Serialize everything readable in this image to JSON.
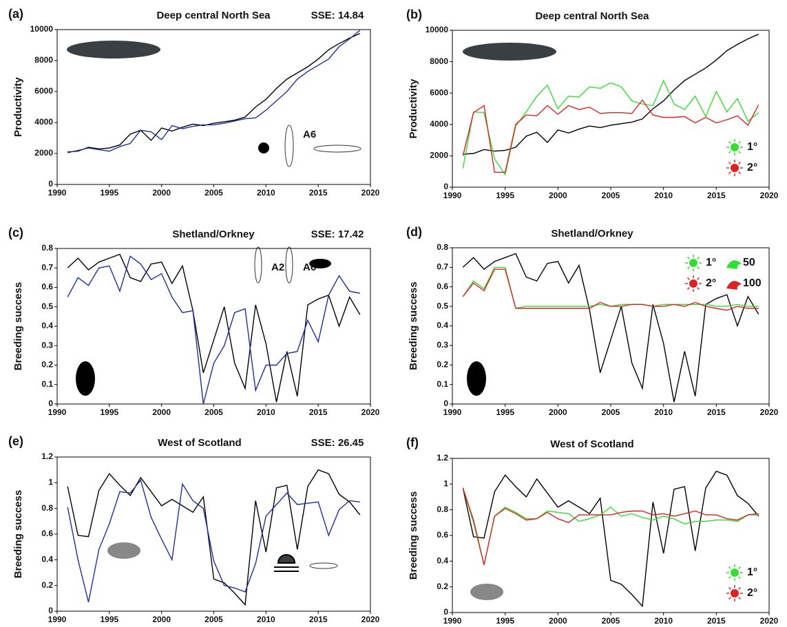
{
  "chart_data": [
    {
      "type": "line",
      "panel_label": "(a)",
      "title": "Deep central North Sea",
      "annotation": "SSE: 14.84",
      "ylabel": "Productivity",
      "icon_labels": [
        "A6"
      ],
      "x": [
        1991,
        1992,
        1993,
        1994,
        1995,
        1996,
        1997,
        1998,
        1999,
        2000,
        2001,
        2002,
        2003,
        2004,
        2005,
        2006,
        2007,
        2008,
        2009,
        2010,
        2011,
        2012,
        2013,
        2014,
        2015,
        2016,
        2017,
        2018,
        2019
      ],
      "xlim": [
        1990,
        2020
      ],
      "xticks": [
        1990,
        1995,
        2000,
        2005,
        2010,
        2015,
        2020
      ],
      "ylim": [
        0,
        10000
      ],
      "yticks": [
        0,
        2000,
        4000,
        6000,
        8000,
        10000
      ],
      "series": [
        {
          "color": "#000000",
          "values": [
            2100,
            2150,
            2400,
            2300,
            2350,
            2550,
            3250,
            3500,
            2850,
            3650,
            3450,
            3700,
            3900,
            3800,
            3950,
            4050,
            4150,
            4350,
            5000,
            5500,
            6200,
            6800,
            7200,
            7600,
            8100,
            8700,
            9100,
            9450,
            9750
          ]
        },
        {
          "color": "#1c2fa0",
          "values": [
            2050,
            2200,
            2350,
            2250,
            2150,
            2450,
            2650,
            3500,
            3400,
            2900,
            3800,
            3600,
            3750,
            3850,
            3850,
            3950,
            4100,
            4250,
            4300,
            4800,
            5400,
            6000,
            6800,
            7300,
            7700,
            8100,
            8900,
            9400,
            9950
          ]
        }
      ]
    },
    {
      "type": "line",
      "panel_label": "(b)",
      "title": "Deep central North Sea",
      "ylabel": "Productivity",
      "legend": "lower right",
      "x": [
        1991,
        1992,
        1993,
        1994,
        1995,
        1996,
        1997,
        1998,
        1999,
        2000,
        2001,
        2002,
        2003,
        2004,
        2005,
        2006,
        2007,
        2008,
        2009,
        2010,
        2011,
        2012,
        2013,
        2014,
        2015,
        2016,
        2017,
        2018,
        2019
      ],
      "xlim": [
        1990,
        2020
      ],
      "xticks": [
        1990,
        1995,
        2000,
        2005,
        2010,
        2015,
        2020
      ],
      "ylim": [
        0,
        10000
      ],
      "yticks": [
        0,
        2000,
        4000,
        6000,
        8000,
        10000
      ],
      "series": [
        {
          "color": "#000000",
          "values": [
            2100,
            2150,
            2400,
            2300,
            2350,
            2550,
            3250,
            3500,
            2850,
            3650,
            3450,
            3700,
            3900,
            3800,
            3950,
            4050,
            4150,
            4350,
            5000,
            5500,
            6200,
            6800,
            7200,
            7600,
            8100,
            8700,
            9100,
            9450,
            9750
          ]
        },
        {
          "name": "1°",
          "color": "#33dd33",
          "values": [
            1200,
            4800,
            4750,
            1800,
            800,
            3900,
            4800,
            5800,
            6500,
            5000,
            5800,
            5750,
            6400,
            6300,
            6650,
            6400,
            5500,
            5300,
            5200,
            6800,
            5300,
            4950,
            5800,
            4500,
            6100,
            4800,
            5650,
            4200,
            4750
          ]
        },
        {
          "name": "2°",
          "color": "#dd2222",
          "values": [
            2000,
            4750,
            5200,
            950,
            950,
            4000,
            4600,
            4550,
            5200,
            4650,
            5200,
            4950,
            5100,
            4700,
            4750,
            4750,
            4700,
            5550,
            4600,
            4450,
            4450,
            4500,
            4100,
            4450,
            4100,
            4300,
            4550,
            3950,
            5250
          ]
        }
      ]
    },
    {
      "type": "line",
      "panel_label": "(c)",
      "title": "Shetland/Orkney",
      "annotation": "SSE: 17.42",
      "ylabel": "Breeding success",
      "icon_labels": [
        "A2",
        "A6"
      ],
      "x": [
        1991,
        1992,
        1993,
        1994,
        1995,
        1996,
        1997,
        1998,
        1999,
        2000,
        2001,
        2002,
        2003,
        2004,
        2005,
        2006,
        2007,
        2008,
        2009,
        2010,
        2011,
        2012,
        2013,
        2014,
        2015,
        2016,
        2017,
        2018,
        2019
      ],
      "xlim": [
        1990,
        2020
      ],
      "xticks": [
        1990,
        1995,
        2000,
        2005,
        2010,
        2015,
        2020
      ],
      "ylim": [
        0,
        0.8
      ],
      "yticks": [
        0,
        0.1,
        0.2,
        0.3,
        0.4,
        0.5,
        0.6,
        0.7,
        0.8
      ],
      "series": [
        {
          "color": "#000000",
          "values": [
            0.7,
            0.75,
            0.69,
            0.73,
            0.75,
            0.77,
            0.65,
            0.63,
            0.72,
            0.73,
            0.62,
            0.71,
            0.48,
            0.16,
            0.33,
            0.5,
            0.21,
            0.08,
            0.51,
            0.31,
            0.01,
            0.27,
            0.04,
            0.51,
            0.54,
            0.56,
            0.4,
            0.55,
            0.46
          ]
        },
        {
          "color": "#1c2fa0",
          "values": [
            0.55,
            0.65,
            0.61,
            0.7,
            0.71,
            0.58,
            0.76,
            0.72,
            0.64,
            0.67,
            0.55,
            0.47,
            0.48,
            0.0,
            0.21,
            0.3,
            0.47,
            0.49,
            0.07,
            0.2,
            0.2,
            0.26,
            0.27,
            0.43,
            0.32,
            0.56,
            0.66,
            0.58,
            0.57
          ]
        }
      ]
    },
    {
      "type": "line",
      "panel_label": "(d)",
      "title": "Shetland/Orkney",
      "ylabel": "Breeding success",
      "legend": "upper right",
      "legend_notes": [
        "50",
        "100"
      ],
      "x": [
        1991,
        1992,
        1993,
        1994,
        1995,
        1996,
        1997,
        1998,
        1999,
        2000,
        2001,
        2002,
        2003,
        2004,
        2005,
        2006,
        2007,
        2008,
        2009,
        2010,
        2011,
        2012,
        2013,
        2014,
        2015,
        2016,
        2017,
        2018,
        2019
      ],
      "xlim": [
        1990,
        2020
      ],
      "xticks": [
        1990,
        1995,
        2000,
        2005,
        2010,
        2015,
        2020
      ],
      "ylim": [
        0,
        0.8
      ],
      "yticks": [
        0,
        0.1,
        0.2,
        0.3,
        0.4,
        0.5,
        0.6,
        0.7,
        0.8
      ],
      "series": [
        {
          "color": "#000000",
          "values": [
            0.7,
            0.75,
            0.69,
            0.73,
            0.75,
            0.77,
            0.65,
            0.63,
            0.72,
            0.73,
            0.62,
            0.71,
            0.48,
            0.16,
            0.33,
            0.5,
            0.21,
            0.08,
            0.51,
            0.31,
            0.01,
            0.27,
            0.04,
            0.51,
            0.54,
            0.56,
            0.4,
            0.55,
            0.46
          ]
        },
        {
          "name": "1°",
          "color": "#33dd33",
          "values": [
            0.55,
            0.63,
            0.59,
            0.7,
            0.7,
            0.49,
            0.5,
            0.5,
            0.5,
            0.5,
            0.5,
            0.5,
            0.5,
            0.51,
            0.5,
            0.51,
            0.51,
            0.51,
            0.5,
            0.51,
            0.51,
            0.51,
            0.51,
            0.51,
            0.5,
            0.5,
            0.51,
            0.5,
            0.5
          ]
        },
        {
          "name": "2°",
          "color": "#dd2222",
          "values": [
            0.55,
            0.62,
            0.58,
            0.69,
            0.69,
            0.49,
            0.49,
            0.49,
            0.49,
            0.49,
            0.49,
            0.49,
            0.49,
            0.52,
            0.5,
            0.5,
            0.51,
            0.51,
            0.5,
            0.5,
            0.51,
            0.5,
            0.52,
            0.5,
            0.49,
            0.48,
            0.5,
            0.49,
            0.49
          ]
        }
      ]
    },
    {
      "type": "line",
      "panel_label": "(e)",
      "title": "West of Scotland",
      "annotation": "SSE: 26.45",
      "ylabel": "Breeding success",
      "x": [
        1991,
        1992,
        1993,
        1994,
        1995,
        1996,
        1997,
        1998,
        1999,
        2000,
        2001,
        2002,
        2003,
        2004,
        2005,
        2006,
        2007,
        2008,
        2009,
        2010,
        2011,
        2012,
        2013,
        2014,
        2015,
        2016,
        2017,
        2018,
        2019
      ],
      "xlim": [
        1990,
        2020
      ],
      "xticks": [
        1990,
        1995,
        2000,
        2005,
        2010,
        2015,
        2020
      ],
      "ylim": [
        0,
        1.2
      ],
      "yticks": [
        0,
        0.2,
        0.4,
        0.6,
        0.8,
        1,
        1.2
      ],
      "series": [
        {
          "color": "#000000",
          "values": [
            0.97,
            0.59,
            0.58,
            0.94,
            1.07,
            0.98,
            0.9,
            1.04,
            0.93,
            0.82,
            0.87,
            0.82,
            0.77,
            0.89,
            0.25,
            0.22,
            0.14,
            0.05,
            0.86,
            0.46,
            0.96,
            0.98,
            0.48,
            0.97,
            1.1,
            1.07,
            0.91,
            0.85,
            0.75
          ]
        },
        {
          "color": "#1c2fa0",
          "values": [
            0.81,
            0.4,
            0.07,
            0.48,
            0.68,
            0.93,
            0.92,
            1.02,
            0.73,
            0.56,
            0.4,
            0.99,
            0.86,
            0.8,
            0.39,
            0.2,
            0.18,
            0.15,
            0.37,
            0.74,
            0.83,
            0.92,
            0.83,
            0.84,
            0.85,
            0.59,
            0.79,
            0.86,
            0.85
          ]
        }
      ]
    },
    {
      "type": "line",
      "panel_label": "(f)",
      "title": "West of Scotland",
      "ylabel": "Breeding success",
      "legend": "lower right",
      "x": [
        1991,
        1992,
        1993,
        1994,
        1995,
        1996,
        1997,
        1998,
        1999,
        2000,
        2001,
        2002,
        2003,
        2004,
        2005,
        2006,
        2007,
        2008,
        2009,
        2010,
        2011,
        2012,
        2013,
        2014,
        2015,
        2016,
        2017,
        2018,
        2019
      ],
      "xlim": [
        1990,
        2020
      ],
      "xticks": [
        1990,
        1995,
        2000,
        2005,
        2010,
        2015,
        2020
      ],
      "ylim": [
        0,
        1.2
      ],
      "yticks": [
        0,
        0.2,
        0.4,
        0.6,
        0.8,
        1,
        1.2
      ],
      "series": [
        {
          "color": "#000000",
          "values": [
            0.97,
            0.59,
            0.58,
            0.94,
            1.07,
            0.98,
            0.9,
            1.04,
            0.93,
            0.82,
            0.87,
            0.82,
            0.77,
            0.89,
            0.25,
            0.22,
            0.14,
            0.05,
            0.86,
            0.46,
            0.96,
            0.98,
            0.48,
            0.97,
            1.1,
            1.07,
            0.91,
            0.85,
            0.75
          ]
        },
        {
          "name": "1°",
          "color": "#33dd33",
          "values": [
            0.97,
            0.7,
            0.37,
            0.75,
            0.82,
            0.78,
            0.73,
            0.73,
            0.79,
            0.78,
            0.77,
            0.71,
            0.73,
            0.76,
            0.82,
            0.75,
            0.77,
            0.74,
            0.72,
            0.75,
            0.73,
            0.69,
            0.71,
            0.71,
            0.72,
            0.72,
            0.71,
            0.76,
            0.76
          ]
        },
        {
          "name": "2°",
          "color": "#dd2222",
          "values": [
            0.97,
            0.72,
            0.37,
            0.75,
            0.81,
            0.77,
            0.72,
            0.73,
            0.78,
            0.73,
            0.7,
            0.76,
            0.76,
            0.76,
            0.76,
            0.78,
            0.79,
            0.79,
            0.76,
            0.77,
            0.75,
            0.77,
            0.79,
            0.76,
            0.76,
            0.73,
            0.72,
            0.76,
            0.77
          ]
        }
      ]
    }
  ]
}
